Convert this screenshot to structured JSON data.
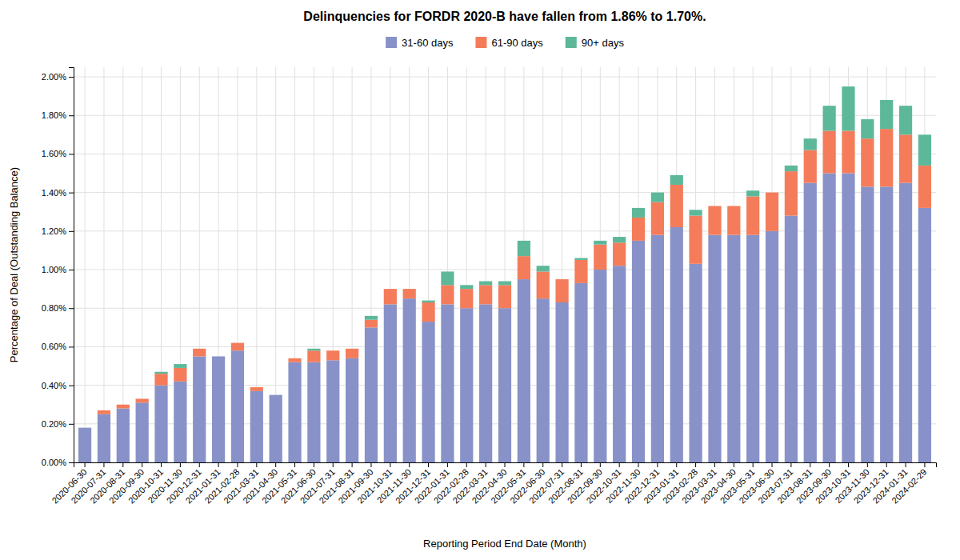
{
  "chart_data": {
    "type": "bar",
    "stacked": true,
    "title": "Delinquencies for FORDR 2020-B have fallen from 1.86% to 1.70%.",
    "x_label": "Reporting Period End Date (Month)",
    "y_label": "Percentage of Deal (Outstanding Balance)",
    "categories": [
      "2020-06-30",
      "2020-07-31",
      "2020-08-31",
      "2020-09-30",
      "2020-10-31",
      "2020-11-30",
      "2020-12-31",
      "2021-01-31",
      "2021-02-28",
      "2021-03-31",
      "2021-04-30",
      "2021-05-31",
      "2021-06-30",
      "2021-07-31",
      "2021-08-31",
      "2021-09-30",
      "2021-10-31",
      "2021-11-30",
      "2021-12-31",
      "2022-01-31",
      "2022-02-28",
      "2022-03-31",
      "2022-04-30",
      "2022-05-31",
      "2022-06-30",
      "2022-07-31",
      "2022-08-31",
      "2022-09-30",
      "2022-10-31",
      "2022-11-30",
      "2022-12-31",
      "2023-01-31",
      "2023-02-28",
      "2023-03-31",
      "2023-04-30",
      "2023-05-31",
      "2023-06-30",
      "2023-07-31",
      "2023-08-31",
      "2023-09-30",
      "2023-10-31",
      "2023-11-30",
      "2023-12-31",
      "2024-01-31",
      "2024-02-29"
    ],
    "series": [
      {
        "name": "31-60 days",
        "color": "#8892c8",
        "values": [
          0.0018,
          0.0025,
          0.0028,
          0.0031,
          0.004,
          0.0042,
          0.0055,
          0.0055,
          0.0058,
          0.0037,
          0.0035,
          0.0052,
          0.0052,
          0.0053,
          0.0054,
          0.007,
          0.0082,
          0.0085,
          0.0073,
          0.0082,
          0.008,
          0.0082,
          0.008,
          0.0095,
          0.0085,
          0.0083,
          0.0093,
          0.01,
          0.0102,
          0.0115,
          0.0118,
          0.0122,
          0.0103,
          0.0118,
          0.0118,
          0.0118,
          0.012,
          0.0128,
          0.0145,
          0.015,
          0.015,
          0.0143,
          0.0143,
          0.0145,
          0.0132
        ]
      },
      {
        "name": "61-90 days",
        "color": "#f47c5a",
        "values": [
          0.0,
          0.0002,
          0.0002,
          0.0002,
          0.0006,
          0.0007,
          0.0004,
          0.0,
          0.0004,
          0.0002,
          0.0,
          0.0002,
          0.0006,
          0.0005,
          0.0005,
          0.0004,
          0.0008,
          0.0005,
          0.001,
          0.001,
          0.001,
          0.001,
          0.0012,
          0.0012,
          0.0014,
          0.0012,
          0.0012,
          0.0013,
          0.0012,
          0.0012,
          0.0017,
          0.0022,
          0.0025,
          0.0015,
          0.0015,
          0.002,
          0.002,
          0.0023,
          0.0017,
          0.0022,
          0.0022,
          0.0025,
          0.003,
          0.0025,
          0.0022
        ]
      },
      {
        "name": "90+ days",
        "color": "#5db89a",
        "values": [
          0.0,
          0.0,
          0.0,
          0.0,
          0.0001,
          0.0002,
          0.0,
          0.0,
          0.0,
          0.0,
          0.0,
          0.0,
          0.0001,
          0.0,
          0.0,
          0.0002,
          0.0,
          0.0,
          0.0001,
          0.0007,
          0.0002,
          0.0002,
          0.0002,
          0.0008,
          0.0003,
          0.0,
          0.0001,
          0.0002,
          0.0003,
          0.0005,
          0.0005,
          0.0005,
          0.0003,
          0.0,
          0.0,
          0.0003,
          0.0,
          0.0003,
          0.0006,
          0.0013,
          0.0023,
          0.001,
          0.0015,
          0.0015,
          0.0016
        ]
      }
    ],
    "ylim": [
      0.0,
      0.0205
    ],
    "yticks": [
      {
        "value": 0.0,
        "label": "0.00%"
      },
      {
        "value": 0.002,
        "label": "0.20%"
      },
      {
        "value": 0.004,
        "label": "0.40%"
      },
      {
        "value": 0.006,
        "label": "0.60%"
      },
      {
        "value": 0.008,
        "label": "0.80%"
      },
      {
        "value": 0.01,
        "label": "1.00%"
      },
      {
        "value": 0.012,
        "label": "1.20%"
      },
      {
        "value": 0.014,
        "label": "1.40%"
      },
      {
        "value": 0.016,
        "label": "1.60%"
      },
      {
        "value": 0.018,
        "label": "1.80%"
      },
      {
        "value": 0.02,
        "label": "2.00%"
      }
    ],
    "grid": true,
    "legend": "top"
  }
}
